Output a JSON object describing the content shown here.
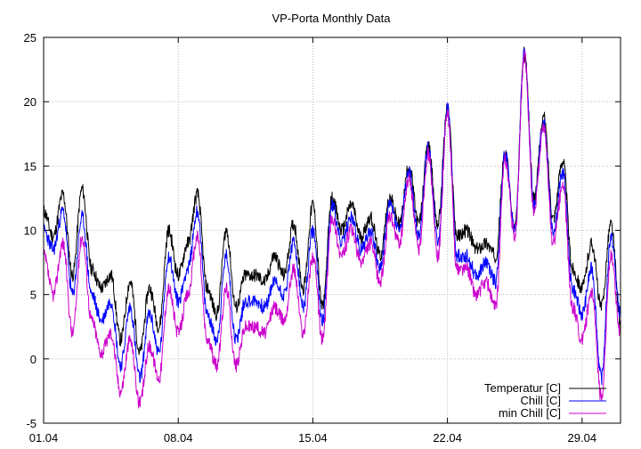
{
  "chart_data": {
    "type": "line",
    "title": "VP-Porta Monthly Data",
    "xlabel": "",
    "ylabel": "",
    "xlim": [
      1,
      31
    ],
    "ylim": [
      -5,
      25
    ],
    "grid": true,
    "legend": "bottom-right",
    "x_ticks": [
      {
        "value": 1,
        "label": "01.04"
      },
      {
        "value": 8,
        "label": "08.04"
      },
      {
        "value": 15,
        "label": "15.04"
      },
      {
        "value": 22,
        "label": "22.04"
      },
      {
        "value": 29,
        "label": "29.04"
      }
    ],
    "y_ticks": [
      {
        "value": -5,
        "label": "-5"
      },
      {
        "value": 0,
        "label": "0"
      },
      {
        "value": 5,
        "label": "5"
      },
      {
        "value": 10,
        "label": "10"
      },
      {
        "value": 15,
        "label": "15"
      },
      {
        "value": 20,
        "label": "20"
      },
      {
        "value": 25,
        "label": "25"
      }
    ],
    "x": [
      1.0,
      1.5,
      2.0,
      2.5,
      3.0,
      3.5,
      4.0,
      4.5,
      5.0,
      5.5,
      6.0,
      6.5,
      7.0,
      7.5,
      8.0,
      8.5,
      9.0,
      9.5,
      10.0,
      10.5,
      11.0,
      11.5,
      12.0,
      12.5,
      13.0,
      13.5,
      14.0,
      14.5,
      15.0,
      15.5,
      16.0,
      16.5,
      17.0,
      17.5,
      18.0,
      18.5,
      19.0,
      19.5,
      20.0,
      20.5,
      21.0,
      21.5,
      22.0,
      22.5,
      23.0,
      23.5,
      24.0,
      24.5,
      25.0,
      25.5,
      26.0,
      26.5,
      27.0,
      27.5,
      28.0,
      28.5,
      29.0,
      29.5,
      30.0,
      30.5,
      31.0
    ],
    "series": [
      {
        "name": "Temperatur [C]",
        "color": "#000000",
        "values": [
          11.5,
          9.5,
          12.8,
          6.5,
          13.2,
          7.0,
          5.5,
          6.5,
          1.5,
          6.0,
          0.5,
          5.5,
          2.5,
          10.0,
          6.5,
          9.0,
          12.8,
          5.5,
          3.5,
          10.0,
          4.0,
          6.5,
          6.5,
          6.0,
          8.0,
          6.5,
          10.5,
          5.5,
          12.0,
          4.0,
          12.5,
          10.0,
          12.0,
          9.5,
          11.0,
          8.0,
          12.5,
          10.5,
          15.0,
          10.5,
          16.5,
          10.5,
          19.5,
          9.5,
          10.0,
          8.5,
          9.0,
          8.0,
          16.0,
          10.0,
          23.8,
          12.5,
          18.8,
          11.0,
          15.5,
          7.0,
          5.5,
          9.0,
          4.0,
          10.5,
          3.0
        ],
        "label": "Temperatur [C]"
      },
      {
        "name": "Chill [C]",
        "color": "#0000ff",
        "values": [
          10.0,
          8.5,
          11.5,
          5.0,
          11.0,
          5.0,
          3.0,
          4.5,
          -0.5,
          4.0,
          -1.5,
          3.5,
          0.5,
          8.0,
          4.5,
          7.0,
          11.5,
          3.5,
          1.5,
          8.0,
          1.5,
          4.5,
          4.5,
          4.0,
          6.0,
          5.0,
          9.0,
          4.0,
          10.0,
          3.0,
          12.0,
          9.0,
          11.0,
          8.5,
          10.0,
          7.0,
          12.0,
          10.0,
          14.5,
          9.5,
          16.5,
          9.0,
          19.5,
          8.0,
          8.0,
          6.5,
          7.5,
          6.0,
          16.0,
          10.0,
          23.8,
          12.0,
          18.5,
          10.0,
          14.5,
          5.5,
          3.5,
          7.0,
          -1.5,
          9.5,
          3.5
        ],
        "label": "Chill [C]"
      },
      {
        "name": "min Chill [C]",
        "color": "#cc00cc",
        "values": [
          8.0,
          5.0,
          9.0,
          2.0,
          9.5,
          3.0,
          0.5,
          2.0,
          -2.5,
          1.5,
          -3.5,
          1.0,
          -1.5,
          5.5,
          2.0,
          5.0,
          9.5,
          1.5,
          -0.5,
          5.5,
          -0.5,
          2.5,
          2.5,
          2.0,
          4.0,
          3.0,
          7.0,
          2.0,
          8.0,
          1.5,
          11.0,
          8.0,
          10.0,
          7.5,
          9.0,
          6.0,
          11.0,
          9.0,
          14.0,
          8.5,
          16.0,
          8.0,
          19.0,
          7.0,
          7.0,
          5.0,
          6.0,
          4.0,
          15.5,
          9.5,
          23.5,
          11.5,
          18.0,
          9.0,
          13.5,
          4.0,
          1.5,
          5.0,
          -3.0,
          8.0,
          2.0
        ],
        "label": "min Chill [C]"
      }
    ]
  }
}
